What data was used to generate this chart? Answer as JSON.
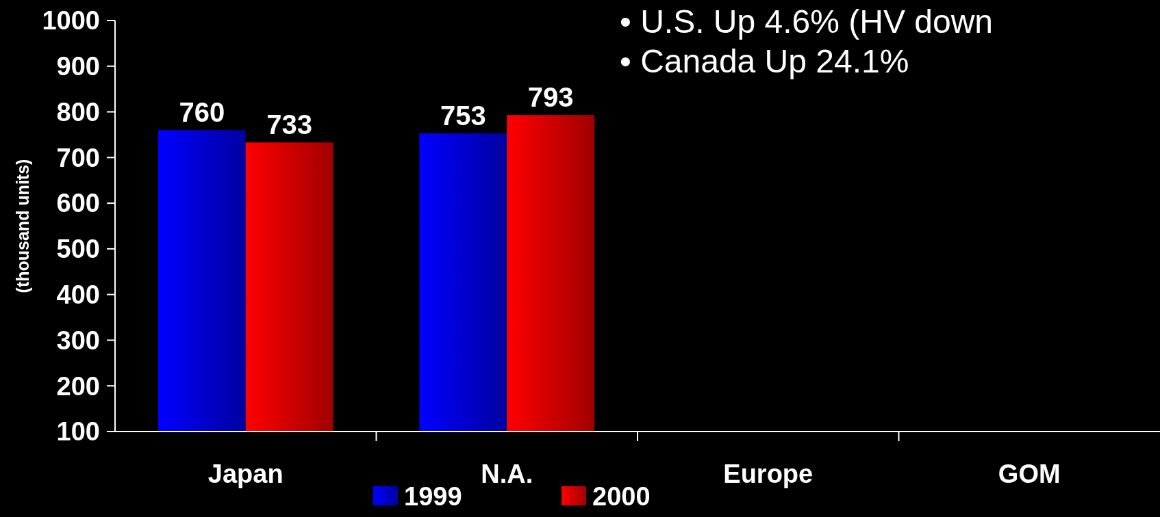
{
  "chart_data": {
    "type": "bar",
    "ylabel": "(thousand units)",
    "categories": [
      "Japan",
      "N.A.",
      "Europe",
      "GOM"
    ],
    "series": [
      {
        "name": "1999",
        "color": "#0000ff",
        "values": [
          760,
          753,
          null,
          null
        ]
      },
      {
        "name": "2000",
        "color": "#ff0000",
        "values": [
          733,
          793,
          null,
          null
        ]
      }
    ],
    "ylim": [
      100,
      1000
    ],
    "yticks": [
      100,
      200,
      300,
      400,
      500,
      600,
      700,
      800,
      900,
      1000
    ],
    "data_labels": true,
    "legend": "bottom",
    "grid": false,
    "annotations": [
      "• U.S. Up 4.6% (HV down",
      "• Canada Up 24.1%"
    ]
  }
}
